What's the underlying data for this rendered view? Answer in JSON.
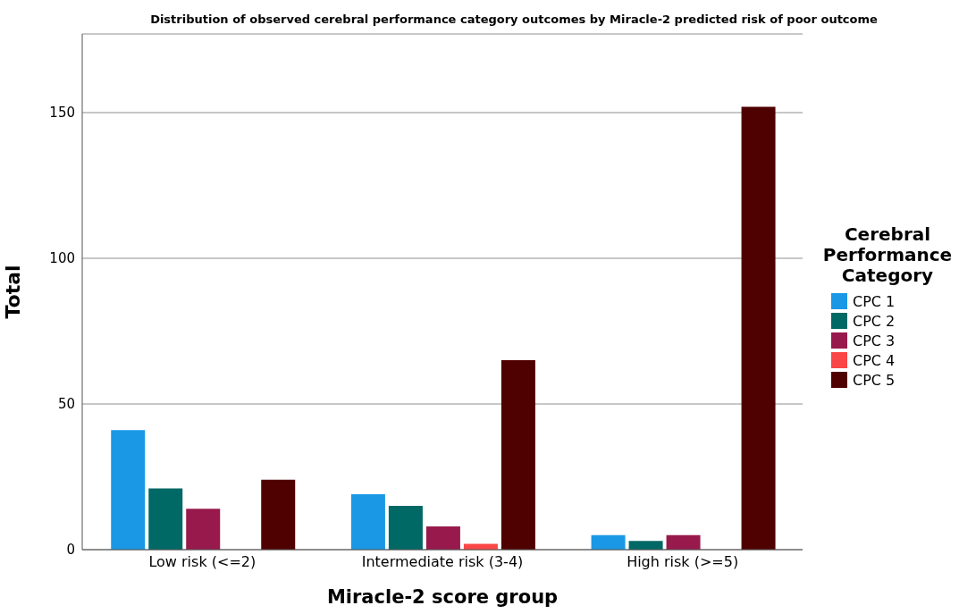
{
  "chart_data": {
    "type": "bar",
    "title": "Distribution of observed cerebral performance category outcomes by Miracle-2 predicted risk of poor outcome",
    "xlabel": "Miracle-2 score group",
    "ylabel": "Total",
    "legend_title": "Cerebral Performance Category",
    "categories": [
      "Low risk (<=2)",
      "Intermediate risk (3-4)",
      "High risk (>=5)"
    ],
    "series": [
      {
        "name": "CPC 1",
        "color": "#1a98e5",
        "values": [
          41,
          19,
          5
        ]
      },
      {
        "name": "CPC 2",
        "color": "#006865",
        "values": [
          21,
          15,
          3
        ]
      },
      {
        "name": "CPC 3",
        "color": "#981a4c",
        "values": [
          14,
          8,
          5
        ]
      },
      {
        "name": "CPC 4",
        "color": "#fa4646",
        "values": [
          0,
          2,
          0
        ]
      },
      {
        "name": "CPC 5",
        "color": "#4f0000",
        "values": [
          24,
          65,
          152
        ]
      }
    ],
    "ylim": [
      0,
      177
    ],
    "yticks": [
      0,
      50,
      100,
      150
    ],
    "grid": "y",
    "legend": "right"
  }
}
